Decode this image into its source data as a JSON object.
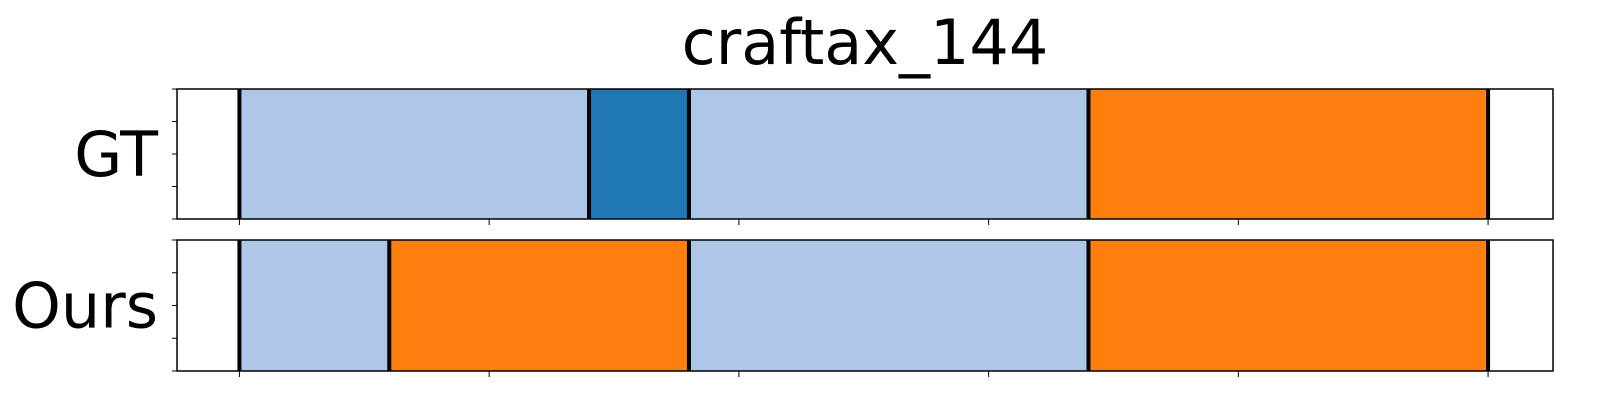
{
  "chart_data": {
    "type": "segmentation-timeline",
    "title": "craftax_144",
    "x_range": [
      -25,
      526
    ],
    "x_ticks": [
      0,
      100,
      200,
      300,
      400,
      500
    ],
    "show_tick_labels": false,
    "rows": [
      {
        "name": "GT",
        "segments": [
          {
            "start": 0,
            "end": 140,
            "color": "#aec7e8"
          },
          {
            "start": 140,
            "end": 180,
            "color": "#1f77b4"
          },
          {
            "start": 180,
            "end": 340,
            "color": "#aec7e8"
          },
          {
            "start": 340,
            "end": 500,
            "color": "#ff7f0e"
          }
        ],
        "boundaries": [
          0,
          140,
          180,
          340,
          500
        ]
      },
      {
        "name": "Ours",
        "segments": [
          {
            "start": 0,
            "end": 60,
            "color": "#aec7e8"
          },
          {
            "start": 60,
            "end": 180,
            "color": "#ff7f0e"
          },
          {
            "start": 180,
            "end": 340,
            "color": "#aec7e8"
          },
          {
            "start": 340,
            "end": 500,
            "color": "#ff7f0e"
          }
        ],
        "boundaries": [
          0,
          60,
          180,
          340,
          500
        ]
      }
    ]
  }
}
